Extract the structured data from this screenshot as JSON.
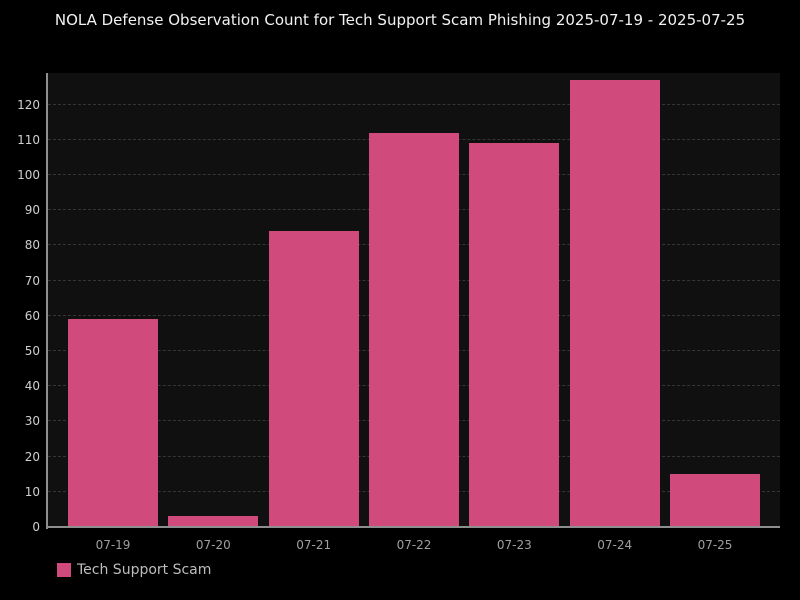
{
  "title": "NOLA Defense Observation Count for Tech Support Scam Phishing 2025-07-19 - 2025-07-25",
  "legend": {
    "label": "Tech Support Scam",
    "swatch_color": "#d04a7c"
  },
  "colors": {
    "figure_background": "#000000",
    "plot_background": "#101010",
    "bar": "#d04a7c",
    "gridline": "#353535",
    "spine": "#8f8f8f",
    "title_text": "#f2f2f2",
    "y_tick_text": "#cfcfcf",
    "x_tick_text": "#9f9f9f"
  },
  "chart_data": {
    "type": "bar",
    "title": "NOLA Defense Observation Count for Tech Support Scam Phishing 2025-07-19 - 2025-07-25",
    "categories": [
      "07-19",
      "07-20",
      "07-21",
      "07-22",
      "07-23",
      "07-24",
      "07-25"
    ],
    "series": [
      {
        "name": "Tech Support Scam",
        "values": [
          59,
          3,
          84,
          112,
          109,
          127,
          15
        ]
      }
    ],
    "xlabel": "",
    "ylabel": "",
    "ylim": [
      0,
      129
    ],
    "yticks": [
      0,
      10,
      20,
      30,
      40,
      50,
      60,
      70,
      80,
      90,
      100,
      110,
      120
    ],
    "grid": true,
    "grid_style": "dashed",
    "legend_position": "bottom-left",
    "bar_color": "#d04a7c",
    "background": "dark"
  }
}
